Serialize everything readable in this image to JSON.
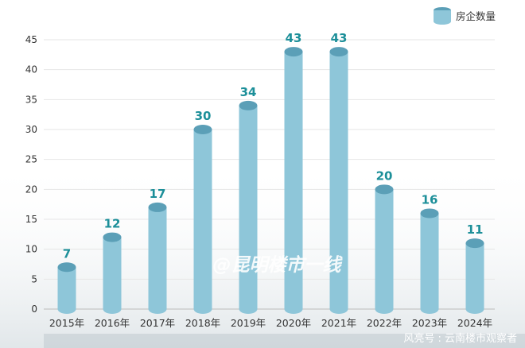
{
  "chart_data": {
    "type": "bar",
    "categories": [
      "2015年",
      "2016年",
      "2017年",
      "2018年",
      "2019年",
      "2020年",
      "2021年",
      "2022年",
      "2023年",
      "2024年"
    ],
    "series": [
      {
        "name": "房企数量",
        "values": [
          7,
          12,
          17,
          30,
          34,
          43,
          43,
          20,
          16,
          11
        ]
      }
    ],
    "yticks": [
      "0",
      "5",
      "10",
      "15",
      "20",
      "25",
      "30",
      "35",
      "40",
      "45"
    ],
    "ylim": [
      0,
      45
    ],
    "grid": true,
    "legend_position": "top-right",
    "bar_shape": "cylinder",
    "colors": {
      "bar": "#8ec6d9",
      "bar_top": "#5b9fb7",
      "label": "#1c8f99",
      "grid": "#e6e6e6"
    }
  },
  "watermark": "@昆明楼市一线",
  "credit": "风亮号 : 云南楼市观察者"
}
